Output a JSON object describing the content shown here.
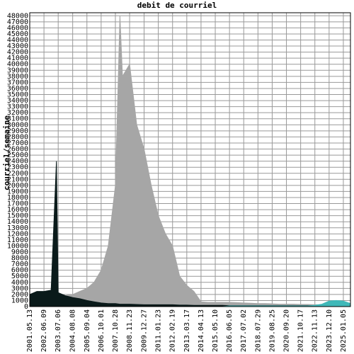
{
  "chart_data": {
    "type": "area",
    "title": "debit de courriel",
    "y_label": "courriel/semaine",
    "x": [
      "2001.05.13",
      "2001.11.25",
      "2002.06.09",
      "2002.12.22",
      "2003.05.18",
      "2003.07.06",
      "2004.01.18",
      "2004.08.08",
      "2005.02.20",
      "2005.09.04",
      "2006.03.19",
      "2006.10.01",
      "2007.04.15",
      "2007.10.28",
      "2008.03.02",
      "2008.05.11",
      "2008.11.23",
      "2009.06.07",
      "2009.12.27",
      "2010.07.11",
      "2011.01.23",
      "2011.08.07",
      "2012.02.19",
      "2012.09.02",
      "2013.03.17",
      "2013.09.29",
      "2014.04.13",
      "2014.10.26",
      "2015.05.10",
      "2015.11.22",
      "2016.06.05",
      "2016.12.18",
      "2017.07.02",
      "2018.01.14",
      "2018.07.29",
      "2019.02.10",
      "2019.08.25",
      "2020.03.08",
      "2020.09.20",
      "2021.04.04",
      "2021.10.17",
      "2022.05.01",
      "2022.11.13",
      "2023.05.28",
      "2023.12.10",
      "2024.06.23",
      "2025.01.05",
      "2025.07.20"
    ],
    "xlim": [
      "2001.05.13",
      "2025.07.20"
    ],
    "xticks": [
      "2001.05.13",
      "2002.06.09",
      "2003.07.06",
      "2004.08.08",
      "2005.09.04",
      "2006.10.01",
      "2007.10.28",
      "2008.11.23",
      "2009.12.27",
      "2011.01.23",
      "2012.02.19",
      "2013.03.17",
      "2014.04.13",
      "2015.05.10",
      "2016.06.05",
      "2017.07.02",
      "2018.07.29",
      "2019.08.25",
      "2020.09.20",
      "2021.10.17",
      "2022.11.13",
      "2023.12.10",
      "2025.01.05"
    ],
    "series": [
      {
        "color": "#a6a6a6",
        "values": [
          0,
          0,
          0,
          0,
          0,
          0,
          1800,
          2000,
          2500,
          3000,
          4000,
          6000,
          10000,
          20000,
          48000,
          38000,
          40000,
          30000,
          26000,
          20000,
          15000,
          12000,
          10000,
          5000,
          3500,
          2500,
          800,
          700,
          700,
          700,
          700,
          650,
          600,
          550,
          500,
          500,
          450,
          400,
          400,
          400,
          350,
          350,
          300,
          300,
          300,
          300,
          300,
          300
        ]
      },
      {
        "color": "#0a1a1a",
        "values": [
          2000,
          2500,
          2500,
          2700,
          24000,
          2300,
          1800,
          1500,
          1300,
          1000,
          800,
          600,
          500,
          500,
          400,
          400,
          400,
          350,
          300,
          300,
          300,
          300,
          300,
          250,
          250,
          200,
          200,
          200,
          200,
          200,
          150,
          150,
          150,
          150,
          150,
          150,
          150,
          150,
          150,
          150,
          150,
          150,
          150,
          150,
          150,
          150,
          150,
          150
        ]
      },
      {
        "color": "#3fb8b8",
        "values": [
          0,
          0,
          0,
          0,
          0,
          0,
          0,
          0,
          0,
          0,
          0,
          0,
          0,
          0,
          0,
          0,
          0,
          0,
          0,
          0,
          0,
          0,
          0,
          0,
          0,
          0,
          0,
          0,
          0,
          0,
          100,
          100,
          100,
          100,
          100,
          100,
          100,
          100,
          100,
          100,
          100,
          100,
          200,
          400,
          900,
          1000,
          900,
          500
        ]
      }
    ],
    "ylim": [
      0,
      48500
    ],
    "yticks": [
      0,
      1000,
      2000,
      3000,
      4000,
      5000,
      6000,
      7000,
      8000,
      9000,
      10000,
      11000,
      12000,
      13000,
      14000,
      15000,
      16000,
      17000,
      18000,
      19000,
      20000,
      21000,
      22000,
      23000,
      24000,
      25000,
      26000,
      27000,
      28000,
      29000,
      30000,
      31000,
      32000,
      33000,
      34000,
      35000,
      36000,
      37000,
      38000,
      39000,
      40000,
      41000,
      42000,
      43000,
      44000,
      45000,
      46000,
      47000,
      48000
    ],
    "grid": true
  }
}
